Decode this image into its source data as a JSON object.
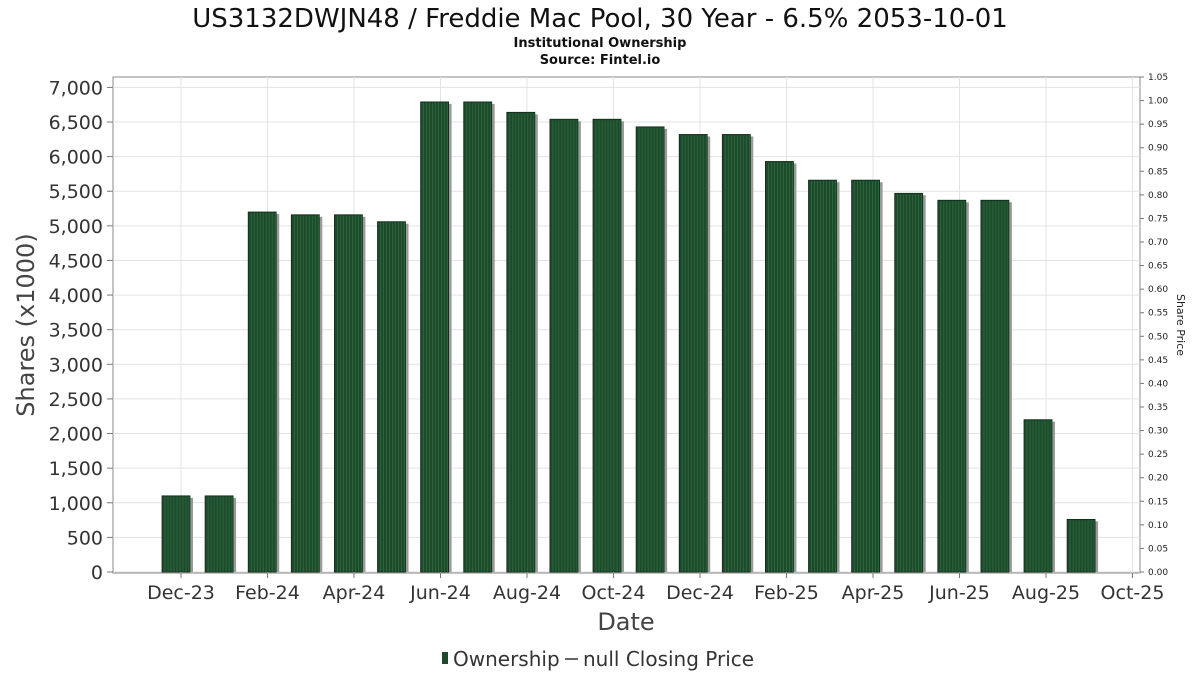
{
  "chart_data": {
    "type": "bar",
    "title": "US3132DWJN48 / Freddie Mac Pool, 30 Year - 6.5% 2053-10-01",
    "subtitle_lines": [
      "Institutional Ownership",
      "Source: Fintel.io"
    ],
    "xlabel": "Date",
    "ylabel": "Shares (x1000)",
    "y2label": "Share Price",
    "ylim": [
      0,
      7150
    ],
    "y2lim": [
      0,
      1.05
    ],
    "yticks": [
      "0",
      "500",
      "1,000",
      "1,500",
      "2,000",
      "2,500",
      "3,000",
      "3,500",
      "4,000",
      "4,500",
      "5,000",
      "5,500",
      "6,000",
      "6,500",
      "7,000"
    ],
    "y2ticks": [
      "0.00",
      "0.05",
      "0.10",
      "0.15",
      "0.20",
      "0.25",
      "0.30",
      "0.35",
      "0.40",
      "0.45",
      "0.50",
      "0.55",
      "0.60",
      "0.65",
      "0.70",
      "0.75",
      "0.80",
      "0.85",
      "0.90",
      "0.95",
      "1.00",
      "1.05"
    ],
    "xticks": [
      "Dec-23",
      "Feb-24",
      "Apr-24",
      "Jun-24",
      "Aug-24",
      "Oct-24",
      "Dec-24",
      "Feb-25",
      "Apr-25",
      "Jun-25",
      "Aug-25",
      "Oct-25"
    ],
    "grid": true,
    "legend_position": "bottom",
    "series": [
      {
        "name": "Ownership",
        "color": "#1e4a2c",
        "values": [
          1100,
          1100,
          5200,
          5160,
          5160,
          5060,
          6790,
          6790,
          6640,
          6540,
          6540,
          6430,
          6320,
          6320,
          5930,
          5660,
          5660,
          5470,
          5370,
          5370,
          2200,
          760
        ]
      }
    ],
    "legend": [
      {
        "label": "Ownership",
        "marker": "bar"
      },
      {
        "label": "null Closing Price",
        "marker": "line"
      }
    ]
  }
}
